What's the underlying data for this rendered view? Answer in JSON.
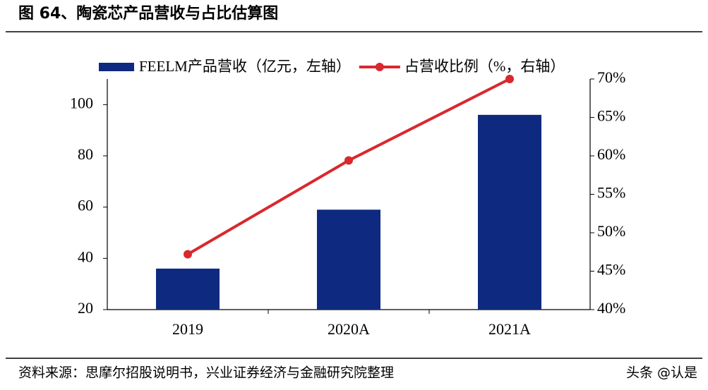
{
  "chart_data": {
    "type": "bar",
    "title": "图 64、陶瓷芯产品营收与占比估算图",
    "source": "资料来源：思摩尔招股说明书，兴业证券经济与金融研究院整理",
    "watermark": "头条 @认是",
    "categories": [
      "2019",
      "2020A",
      "2021A"
    ],
    "series": [
      {
        "name": "FEELM产品营收（亿元，左轴）",
        "type": "bar",
        "color": "#0e2a80",
        "values": [
          36,
          59,
          96
        ]
      },
      {
        "name": "占营收比例（%，右轴）",
        "type": "line",
        "axis": "y2",
        "color": "#d9282e",
        "values": [
          47.2,
          59.4,
          70
        ]
      }
    ],
    "ylim": [
      20,
      110
    ],
    "yticks": [
      20,
      40,
      60,
      80,
      100
    ],
    "y2lim": [
      40,
      70
    ],
    "y2ticks": [
      {
        "value": 40,
        "label": "40%"
      },
      {
        "value": 45,
        "label": "45%"
      },
      {
        "value": 50,
        "label": "50%"
      },
      {
        "value": 55,
        "label": "55%"
      },
      {
        "value": 60,
        "label": "60%"
      },
      {
        "value": 65,
        "label": "65%"
      },
      {
        "value": 70,
        "label": "70%"
      }
    ],
    "grid": false
  }
}
